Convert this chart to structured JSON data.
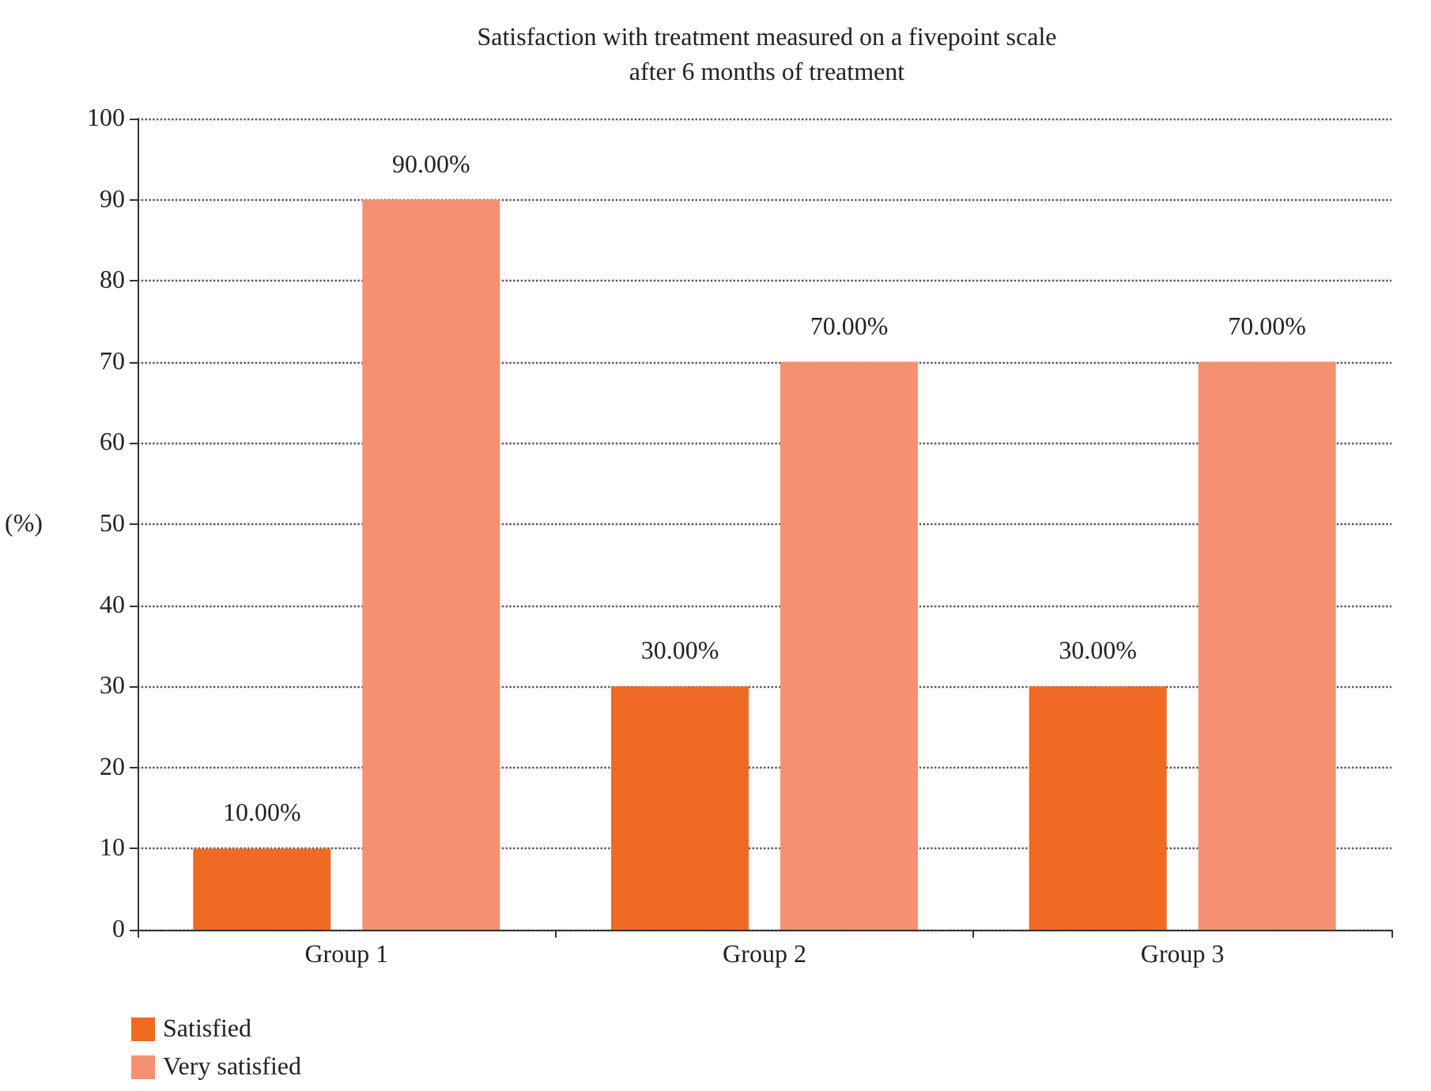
{
  "chart_data": {
    "type": "bar",
    "title": "Satisfaction with treatment measured on a fivepoint scale\nafter 6 months of treatment",
    "ylabel": "(%)",
    "categories": [
      "Group 1",
      "Group 2",
      "Group 3"
    ],
    "series": [
      {
        "name": "Satisfied",
        "color": "#f06a24",
        "values": [
          10,
          30,
          30
        ],
        "value_labels": [
          "10.00%",
          "30.00%",
          "30.00%"
        ]
      },
      {
        "name": "Very satisfied",
        "color": "#f59172",
        "values": [
          90,
          70,
          70
        ],
        "value_labels": [
          "90.00%",
          "70.00%",
          "70.00%"
        ]
      }
    ],
    "ylim": [
      0,
      100
    ],
    "yticks": [
      0,
      10,
      20,
      30,
      40,
      50,
      60,
      70,
      80,
      90,
      100
    ],
    "grid": "y",
    "legend": "bottom left"
  }
}
